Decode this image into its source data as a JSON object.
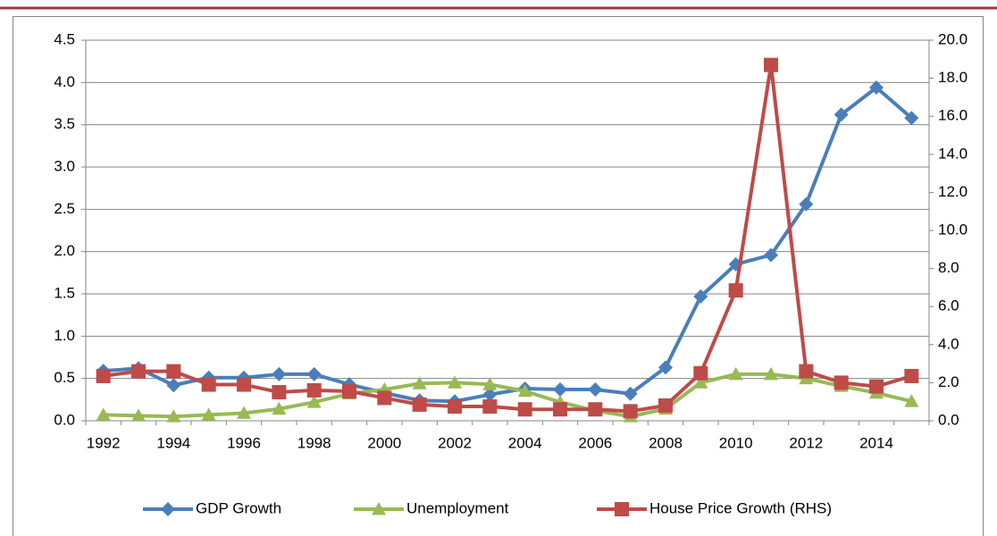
{
  "chart_data": {
    "type": "line",
    "categories": [
      "1992",
      null,
      "1994",
      null,
      "1996",
      null,
      "1998",
      null,
      "2000",
      null,
      "2002",
      null,
      "2004",
      null,
      "2006",
      null,
      "2008",
      null,
      "2010",
      null,
      "2012",
      null,
      "2014",
      null
    ],
    "series": [
      {
        "name": "GDP Growth",
        "color": "#4a7ebb",
        "marker": "diamond",
        "values": [
          0.59,
          0.62,
          0.42,
          0.51,
          0.51,
          0.55,
          0.55,
          0.43,
          0.33,
          0.24,
          0.23,
          0.31,
          0.38,
          0.37,
          0.37,
          0.32,
          0.63,
          1.47,
          1.85,
          1.96,
          2.56,
          3.62,
          3.94,
          3.58
        ]
      },
      {
        "name": "Unemployment",
        "color": "#98b954",
        "marker": "triangle",
        "values": [
          0.07,
          0.06,
          0.05,
          0.07,
          0.09,
          0.14,
          0.22,
          0.32,
          0.37,
          0.44,
          0.45,
          0.43,
          0.35,
          0.22,
          0.12,
          0.05,
          0.14,
          0.45,
          0.55,
          0.55,
          0.5,
          0.41,
          0.33,
          0.23
        ]
      },
      {
        "name": "House Price Growth (RHS)",
        "color": "#be4b48",
        "marker": "square",
        "axis": "y2",
        "values": [
          2.35,
          2.6,
          2.6,
          1.9,
          1.9,
          1.5,
          1.6,
          1.55,
          1.2,
          0.85,
          0.75,
          0.75,
          0.6,
          0.6,
          0.6,
          0.5,
          0.8,
          2.5,
          6.85,
          18.7,
          2.6,
          2.0,
          1.8,
          2.35
        ]
      }
    ],
    "ylim": [
      0,
      4.5
    ],
    "yticks": [
      {
        "value": 0,
        "label": "0.0"
      },
      0.5,
      {
        "value": 1,
        "label": "1.0"
      },
      1.5,
      {
        "value": 2,
        "label": "2.0"
      },
      2.5,
      {
        "value": 3,
        "label": "3.0"
      },
      3.5,
      {
        "value": 4,
        "label": "4.0"
      },
      4.5
    ],
    "y2lim": [
      0,
      20
    ],
    "y2ticks": [
      {
        "value": 0,
        "label": "0.0"
      },
      {
        "value": 2,
        "label": "2.0"
      },
      {
        "value": 4,
        "label": "4.0"
      },
      {
        "value": 6,
        "label": "6.0"
      },
      {
        "value": 8,
        "label": "8.0"
      },
      {
        "value": 10,
        "label": "10.0"
      },
      {
        "value": 12,
        "label": "12.0"
      },
      {
        "value": 14,
        "label": "14.0"
      },
      {
        "value": 16,
        "label": "16.0"
      },
      {
        "value": 18,
        "label": "18.0"
      },
      {
        "value": 20,
        "label": "20.0"
      }
    ],
    "grid": true,
    "legend": "bottom"
  }
}
